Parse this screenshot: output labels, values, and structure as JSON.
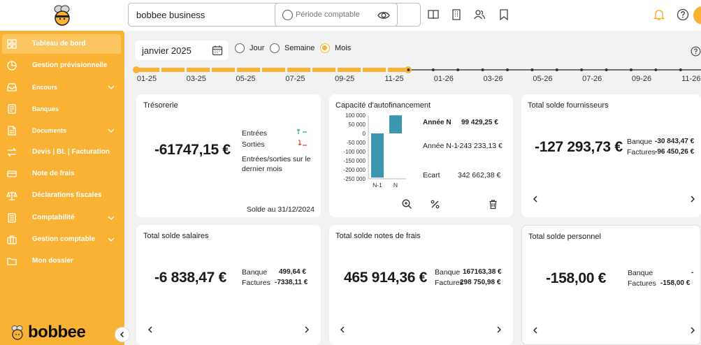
{
  "header": {
    "company_name": "bobbee business",
    "period_placeholder": "Période comptable"
  },
  "sidebar": {
    "brand": "bobbee",
    "items": [
      {
        "label": "Tableau de bord",
        "icon": "grid-icon",
        "active": true
      },
      {
        "label": "Gestion prévisionnelle",
        "icon": "pie-chart-icon"
      },
      {
        "label": "Encours",
        "icon": "inbox-icon",
        "expandable": true
      },
      {
        "label": "Banques",
        "icon": "bank-icon"
      },
      {
        "label": "Documents",
        "icon": "document-icon",
        "expandable": true
      },
      {
        "label": "Devis | BL | Facturation",
        "icon": "exchange-icon"
      },
      {
        "label": "Note de frais",
        "icon": "card-icon"
      },
      {
        "label": "Déclarations fiscales",
        "icon": "scale-icon"
      },
      {
        "label": "Comptabilité",
        "icon": "ledger-icon",
        "expandable": true
      },
      {
        "label": "Gestion comptable",
        "icon": "briefcase-icon",
        "expandable": true
      },
      {
        "label": "Mon dossier",
        "icon": "folder-icon"
      }
    ]
  },
  "filter": {
    "date": "janvier 2025",
    "options": [
      "Jour",
      "Semaine",
      "Mois"
    ],
    "selected": "Mois"
  },
  "timeline": {
    "labels": [
      "01-25",
      "03-25",
      "05-25",
      "07-25",
      "09-25",
      "11-25",
      "01-26",
      "03-26",
      "05-26",
      "07-26",
      "09-26",
      "11-26"
    ]
  },
  "cards": {
    "tresorerie": {
      "title": "Trésorerie",
      "amount": "-61747,15 €",
      "entrees_label": "Entrées",
      "sorties_label": "Sorties",
      "note": "Entrées/sorties sur le dernier mois",
      "footer": "Solde au 31/12/2024"
    },
    "caf": {
      "title": "Capacité d'autofinancement",
      "annee_n_label": "Année N",
      "annee_n_value": "99 429,25 €",
      "annee_n1_label": "Année N-1",
      "annee_n1_value": "-243 233,13 €",
      "ecart_label": "Ecart",
      "ecart_value": "342 662,38 €"
    },
    "fournisseurs": {
      "title": "Total solde fournisseurs",
      "amount": "-127 293,73 €",
      "banque_label": "Banque",
      "banque_value": "-30 843,47 €",
      "factures_label": "Factures",
      "factures_value": "-96 450,26 €"
    },
    "salaires": {
      "title": "Total solde salaires",
      "amount": "-6 838,47 €",
      "banque_label": "Banque",
      "banque_value": "499,64 €",
      "factures_label": "Factures",
      "factures_value": "-7338,11 €"
    },
    "notes_frais": {
      "title": "Total solde notes de frais",
      "amount": "465 914,36 €",
      "banque_label": "Banque",
      "banque_value": "167163,38 €",
      "factures_label": "Factures",
      "factures_value": "298 750,98 €"
    },
    "personnel": {
      "title": "Total solde personnel",
      "amount": "-158,00 €",
      "banque_label": "Banque",
      "banque_value": "-",
      "factures_label": "Factures",
      "factures_value": "-158,00 €"
    }
  },
  "chart_data": {
    "type": "bar",
    "categories": [
      "N-1",
      "N"
    ],
    "values": [
      -243233.13,
      99429.25
    ],
    "ylim": [
      -250000,
      100000
    ],
    "yticks": [
      "100 000",
      "50 000",
      "0",
      "-50 000",
      "-100 000",
      "-150 000",
      "-200 000",
      "-250 000"
    ],
    "color": "#3b97b0"
  },
  "colors": {
    "accent": "#f9b233"
  }
}
